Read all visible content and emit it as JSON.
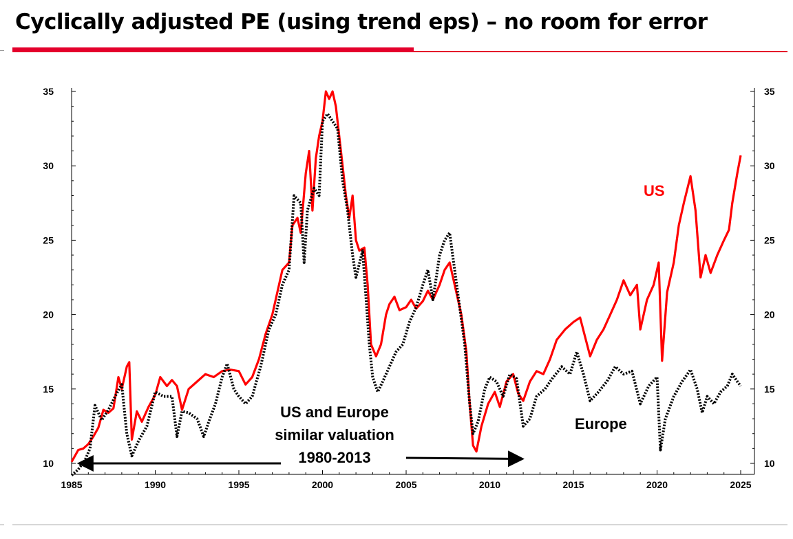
{
  "page": {
    "title": "Cyclically adjusted PE (using trend eps) – no room for error",
    "brand_color": "#e4002b"
  },
  "chart_data": {
    "type": "line",
    "title": "Cyclically adjusted PE (using trend eps) – no room for error",
    "xlabel": "",
    "ylabel": "",
    "xlim": [
      1985,
      2025
    ],
    "ylim": [
      10,
      35
    ],
    "x_ticks": [
      1985,
      1990,
      1995,
      2000,
      2005,
      2010,
      2015,
      2020,
      2025
    ],
    "y_ticks": [
      10,
      15,
      20,
      25,
      30,
      35
    ],
    "grid": false,
    "series": [
      {
        "name": "US",
        "label": "US",
        "color": "#ff0000",
        "style": "solid",
        "points": [
          [
            1985.0,
            10.1
          ],
          [
            1985.4,
            10.9
          ],
          [
            1985.7,
            11.0
          ],
          [
            1986.0,
            11.3
          ],
          [
            1986.3,
            11.8
          ],
          [
            1986.6,
            12.4
          ],
          [
            1986.9,
            13.6
          ],
          [
            1987.2,
            13.4
          ],
          [
            1987.5,
            13.7
          ],
          [
            1987.8,
            15.8
          ],
          [
            1988.0,
            15.0
          ],
          [
            1988.3,
            16.5
          ],
          [
            1988.45,
            16.8
          ],
          [
            1988.6,
            11.6
          ],
          [
            1988.9,
            13.5
          ],
          [
            1989.2,
            12.8
          ],
          [
            1989.6,
            13.8
          ],
          [
            1990.0,
            14.6
          ],
          [
            1990.3,
            15.8
          ],
          [
            1990.7,
            15.2
          ],
          [
            1991.0,
            15.6
          ],
          [
            1991.3,
            15.2
          ],
          [
            1991.6,
            13.6
          ],
          [
            1992.0,
            15.0
          ],
          [
            1992.5,
            15.5
          ],
          [
            1993.0,
            16.0
          ],
          [
            1993.5,
            15.8
          ],
          [
            1994.0,
            16.2
          ],
          [
            1994.5,
            16.3
          ],
          [
            1995.0,
            16.2
          ],
          [
            1995.4,
            15.3
          ],
          [
            1995.8,
            15.8
          ],
          [
            1996.2,
            17.0
          ],
          [
            1996.6,
            18.7
          ],
          [
            1997.0,
            20.0
          ],
          [
            1997.3,
            21.5
          ],
          [
            1997.6,
            23.0
          ],
          [
            1998.0,
            23.5
          ],
          [
            1998.2,
            26.0
          ],
          [
            1998.5,
            26.5
          ],
          [
            1998.7,
            25.5
          ],
          [
            1999.0,
            29.5
          ],
          [
            1999.2,
            31.0
          ],
          [
            1999.4,
            27.0
          ],
          [
            1999.6,
            30.5
          ],
          [
            1999.8,
            32.0
          ],
          [
            2000.0,
            33.0
          ],
          [
            2000.2,
            35.0
          ],
          [
            2000.4,
            34.5
          ],
          [
            2000.6,
            35.0
          ],
          [
            2000.8,
            34.0
          ],
          [
            2001.0,
            32.0
          ],
          [
            2001.2,
            30.0
          ],
          [
            2001.4,
            28.0
          ],
          [
            2001.6,
            26.5
          ],
          [
            2001.8,
            28.0
          ],
          [
            2002.0,
            25.0
          ],
          [
            2002.2,
            24.3
          ],
          [
            2002.5,
            24.5
          ],
          [
            2002.7,
            22.0
          ],
          [
            2002.9,
            18.0
          ],
          [
            2003.2,
            17.2
          ],
          [
            2003.5,
            18.0
          ],
          [
            2003.8,
            20.0
          ],
          [
            2004.0,
            20.7
          ],
          [
            2004.3,
            21.2
          ],
          [
            2004.6,
            20.3
          ],
          [
            2005.0,
            20.5
          ],
          [
            2005.3,
            21.0
          ],
          [
            2005.6,
            20.4
          ],
          [
            2006.0,
            20.9
          ],
          [
            2006.3,
            21.6
          ],
          [
            2006.6,
            21.0
          ],
          [
            2007.0,
            22.0
          ],
          [
            2007.3,
            23.0
          ],
          [
            2007.6,
            23.5
          ],
          [
            2007.9,
            22.0
          ],
          [
            2008.3,
            20.0
          ],
          [
            2008.6,
            17.5
          ],
          [
            2008.8,
            14.0
          ],
          [
            2009.0,
            11.2
          ],
          [
            2009.2,
            10.8
          ],
          [
            2009.5,
            12.5
          ],
          [
            2009.9,
            14.0
          ],
          [
            2010.3,
            14.8
          ],
          [
            2010.6,
            13.8
          ],
          [
            2011.0,
            15.5
          ],
          [
            2011.4,
            16.0
          ],
          [
            2011.7,
            14.7
          ],
          [
            2012.0,
            14.2
          ],
          [
            2012.4,
            15.5
          ],
          [
            2012.8,
            16.2
          ],
          [
            2013.2,
            16.0
          ],
          [
            2013.6,
            17.0
          ],
          [
            2014.0,
            18.3
          ],
          [
            2014.5,
            19.0
          ],
          [
            2015.0,
            19.5
          ],
          [
            2015.4,
            19.8
          ],
          [
            2015.7,
            18.5
          ],
          [
            2016.0,
            17.2
          ],
          [
            2016.4,
            18.3
          ],
          [
            2016.8,
            19.0
          ],
          [
            2017.2,
            20.0
          ],
          [
            2017.6,
            21.0
          ],
          [
            2018.0,
            22.3
          ],
          [
            2018.4,
            21.3
          ],
          [
            2018.8,
            22.0
          ],
          [
            2019.0,
            19.0
          ],
          [
            2019.4,
            21.0
          ],
          [
            2019.8,
            22.0
          ],
          [
            2020.1,
            23.5
          ],
          [
            2020.3,
            16.9
          ],
          [
            2020.6,
            21.5
          ],
          [
            2021.0,
            23.5
          ],
          [
            2021.3,
            26.0
          ],
          [
            2021.6,
            27.5
          ],
          [
            2022.0,
            29.3
          ],
          [
            2022.3,
            27.0
          ],
          [
            2022.6,
            22.5
          ],
          [
            2022.9,
            24.0
          ],
          [
            2023.2,
            22.8
          ],
          [
            2023.6,
            24.0
          ],
          [
            2024.0,
            25.0
          ],
          [
            2024.3,
            25.7
          ],
          [
            2024.5,
            27.5
          ],
          [
            2024.8,
            29.5
          ],
          [
            2025.0,
            30.7
          ]
        ]
      },
      {
        "name": "Europe",
        "label": "Europe",
        "color": "#000000",
        "style": "dotted",
        "points": [
          [
            1985.0,
            9.2
          ],
          [
            1985.4,
            9.6
          ],
          [
            1985.8,
            10.2
          ],
          [
            1986.1,
            11.0
          ],
          [
            1986.4,
            13.9
          ],
          [
            1986.8,
            12.9
          ],
          [
            1987.2,
            13.6
          ],
          [
            1987.6,
            14.5
          ],
          [
            1988.0,
            15.3
          ],
          [
            1988.3,
            12.0
          ],
          [
            1988.6,
            10.5
          ],
          [
            1989.0,
            11.5
          ],
          [
            1989.5,
            12.5
          ],
          [
            1990.0,
            14.8
          ],
          [
            1990.5,
            14.5
          ],
          [
            1991.0,
            14.5
          ],
          [
            1991.3,
            11.8
          ],
          [
            1991.6,
            13.5
          ],
          [
            1992.0,
            13.4
          ],
          [
            1992.5,
            13.0
          ],
          [
            1992.9,
            11.8
          ],
          [
            1993.2,
            12.8
          ],
          [
            1993.6,
            14.0
          ],
          [
            1994.0,
            15.8
          ],
          [
            1994.3,
            16.7
          ],
          [
            1994.7,
            15.0
          ],
          [
            1995.0,
            14.5
          ],
          [
            1995.4,
            14.0
          ],
          [
            1995.8,
            14.5
          ],
          [
            1996.3,
            16.5
          ],
          [
            1996.8,
            19.0
          ],
          [
            1997.2,
            20.0
          ],
          [
            1997.6,
            22.0
          ],
          [
            1998.0,
            23.0
          ],
          [
            1998.3,
            28.0
          ],
          [
            1998.7,
            27.5
          ],
          [
            1998.9,
            23.5
          ],
          [
            1999.1,
            27.0
          ],
          [
            1999.5,
            28.5
          ],
          [
            1999.8,
            28.0
          ],
          [
            2000.0,
            33.0
          ],
          [
            2000.3,
            33.5
          ],
          [
            2000.6,
            33.0
          ],
          [
            2000.9,
            32.5
          ],
          [
            2001.2,
            29.0
          ],
          [
            2001.5,
            27.0
          ],
          [
            2001.8,
            24.0
          ],
          [
            2002.0,
            22.5
          ],
          [
            2002.4,
            24.3
          ],
          [
            2002.8,
            18.0
          ],
          [
            2003.0,
            15.8
          ],
          [
            2003.3,
            14.8
          ],
          [
            2003.6,
            15.5
          ],
          [
            2004.0,
            16.5
          ],
          [
            2004.4,
            17.5
          ],
          [
            2004.8,
            18.0
          ],
          [
            2005.2,
            19.5
          ],
          [
            2005.6,
            20.5
          ],
          [
            2006.0,
            22.0
          ],
          [
            2006.3,
            23.0
          ],
          [
            2006.6,
            21.0
          ],
          [
            2007.0,
            24.0
          ],
          [
            2007.3,
            25.0
          ],
          [
            2007.6,
            25.5
          ],
          [
            2007.9,
            23.0
          ],
          [
            2008.2,
            20.5
          ],
          [
            2008.5,
            18.0
          ],
          [
            2008.8,
            14.0
          ],
          [
            2009.0,
            12.0
          ],
          [
            2009.3,
            12.8
          ],
          [
            2009.7,
            15.0
          ],
          [
            2010.0,
            15.8
          ],
          [
            2010.4,
            15.5
          ],
          [
            2010.8,
            14.5
          ],
          [
            2011.2,
            16.0
          ],
          [
            2011.6,
            15.7
          ],
          [
            2012.0,
            12.5
          ],
          [
            2012.4,
            13.0
          ],
          [
            2012.8,
            14.5
          ],
          [
            2013.3,
            15.0
          ],
          [
            2013.8,
            15.8
          ],
          [
            2014.3,
            16.5
          ],
          [
            2014.8,
            16.0
          ],
          [
            2015.2,
            17.5
          ],
          [
            2015.6,
            16.0
          ],
          [
            2016.0,
            14.2
          ],
          [
            2016.5,
            14.8
          ],
          [
            2017.0,
            15.5
          ],
          [
            2017.5,
            16.5
          ],
          [
            2018.0,
            16.0
          ],
          [
            2018.5,
            16.2
          ],
          [
            2019.0,
            14.0
          ],
          [
            2019.5,
            15.2
          ],
          [
            2020.0,
            15.8
          ],
          [
            2020.2,
            10.9
          ],
          [
            2020.5,
            13.0
          ],
          [
            2021.0,
            14.5
          ],
          [
            2021.5,
            15.5
          ],
          [
            2022.0,
            16.3
          ],
          [
            2022.4,
            15.0
          ],
          [
            2022.7,
            13.4
          ],
          [
            2023.0,
            14.5
          ],
          [
            2023.4,
            14.0
          ],
          [
            2023.8,
            14.8
          ],
          [
            2024.2,
            15.2
          ],
          [
            2024.5,
            16.0
          ],
          [
            2024.8,
            15.5
          ],
          [
            2025.0,
            15.2
          ]
        ]
      }
    ],
    "annotations": {
      "text_lines": [
        "US and Europe",
        "similar valuation",
        "1980-2013"
      ],
      "arrow_left_to": [
        1985.2,
        10.0
      ],
      "arrow_right_to": [
        2012.2,
        10.3
      ],
      "us_label": "US",
      "europe_label": "Europe"
    }
  }
}
